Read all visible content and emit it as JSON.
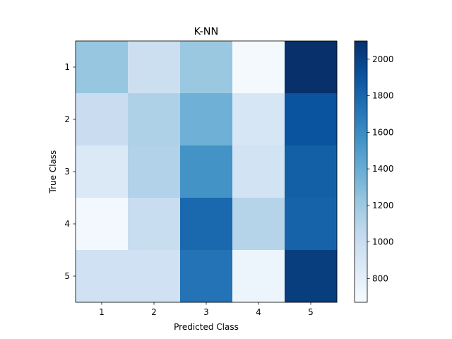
{
  "chart_data": {
    "type": "heatmap",
    "title": "K-NN",
    "xlabel": "Predicted Class",
    "ylabel": "True Class",
    "x_categories": [
      "1",
      "2",
      "3",
      "4",
      "5"
    ],
    "y_categories": [
      "1",
      "2",
      "3",
      "4",
      "5"
    ],
    "values": [
      [
        1230,
        980,
        1220,
        690,
        2100
      ],
      [
        1000,
        1130,
        1370,
        900,
        1910
      ],
      [
        870,
        1120,
        1560,
        940,
        1840
      ],
      [
        700,
        1010,
        1790,
        1100,
        1820
      ],
      [
        960,
        960,
        1730,
        740,
        2030
      ]
    ],
    "colorbar": {
      "min": 670,
      "max": 2100,
      "ticks": [
        800,
        1000,
        1200,
        1400,
        1600,
        1800,
        2000
      ],
      "colormap": "Blues"
    }
  }
}
